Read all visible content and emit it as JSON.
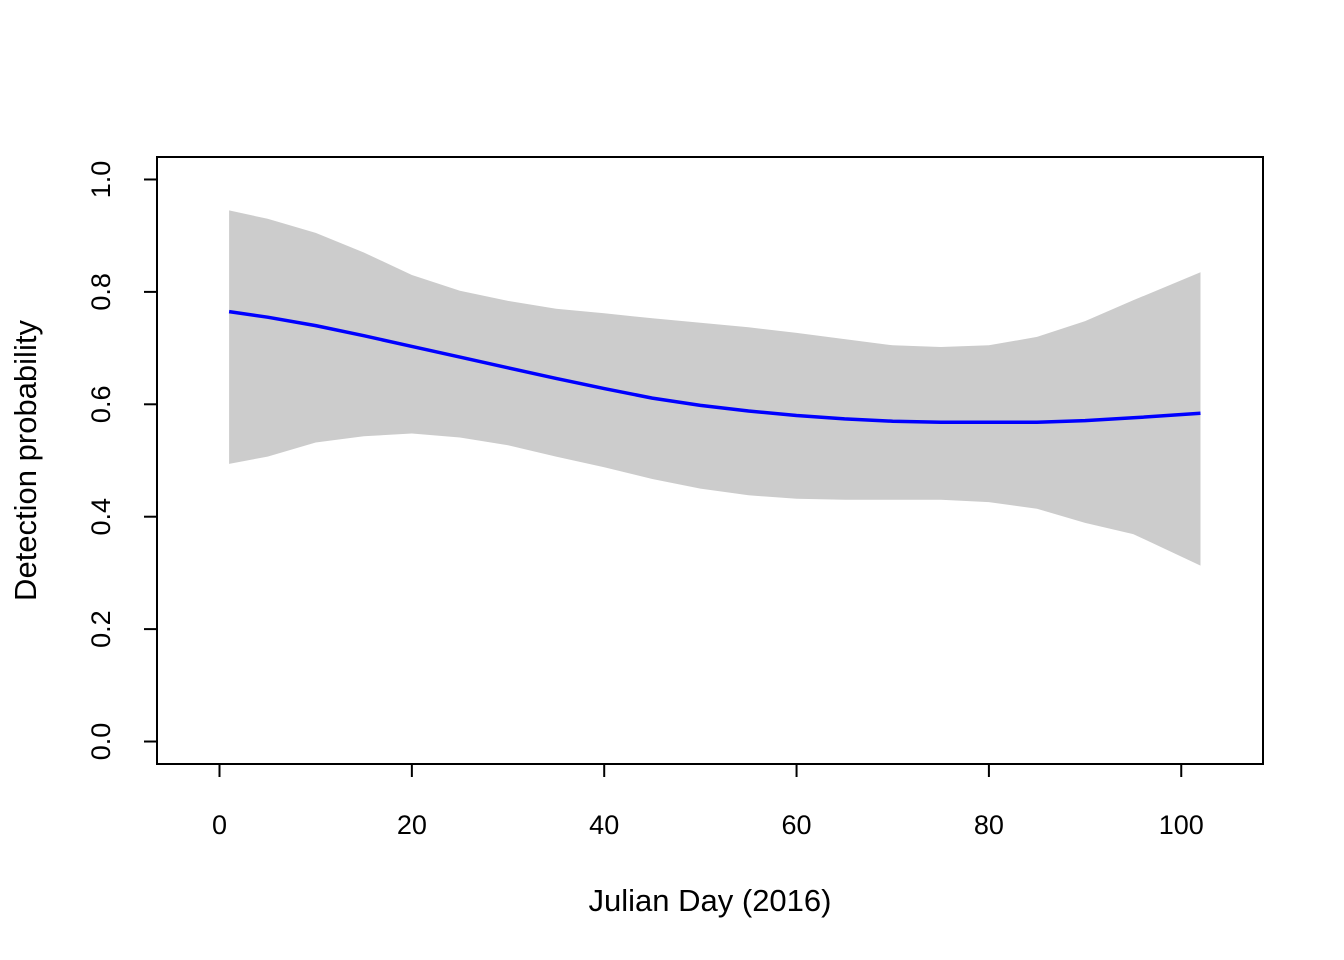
{
  "chart_data": {
    "type": "line",
    "title": "",
    "xlabel": "Julian Day (2016)",
    "ylabel": "Detection probability",
    "xlim": [
      -6.5,
      108.5
    ],
    "ylim": [
      -0.04,
      1.04
    ],
    "x_ticks": [
      0,
      20,
      40,
      60,
      80,
      100
    ],
    "y_ticks": [
      0.0,
      0.2,
      0.4,
      0.6,
      0.8,
      1.0
    ],
    "x_tick_labels": [
      "0",
      "20",
      "40",
      "60",
      "80",
      "100"
    ],
    "y_tick_labels": [
      "0.0",
      "0.2",
      "0.4",
      "0.6",
      "0.8",
      "1.0"
    ],
    "grid": false,
    "legend": "none",
    "series": [
      {
        "x": [
          1,
          5,
          10,
          15,
          20,
          25,
          30,
          35,
          40,
          45,
          50,
          55,
          60,
          65,
          70,
          75,
          80,
          85,
          90,
          95,
          102
        ],
        "y": [
          0.765,
          0.755,
          0.74,
          0.722,
          0.703,
          0.684,
          0.665,
          0.646,
          0.628,
          0.611,
          0.598,
          0.588,
          0.58,
          0.574,
          0.57,
          0.568,
          0.568,
          0.568,
          0.571,
          0.576,
          0.584
        ],
        "lower": [
          0.494,
          0.507,
          0.532,
          0.543,
          0.548,
          0.541,
          0.527,
          0.507,
          0.488,
          0.467,
          0.45,
          0.438,
          0.432,
          0.43,
          0.43,
          0.43,
          0.426,
          0.414,
          0.389,
          0.369,
          0.313
        ],
        "upper": [
          0.945,
          0.93,
          0.905,
          0.87,
          0.83,
          0.802,
          0.784,
          0.77,
          0.762,
          0.753,
          0.745,
          0.737,
          0.727,
          0.716,
          0.705,
          0.702,
          0.705,
          0.72,
          0.748,
          0.785,
          0.835
        ]
      }
    ],
    "colors": {
      "line": "#0000ff",
      "band": "#cccccc",
      "axes": "#000000"
    }
  }
}
